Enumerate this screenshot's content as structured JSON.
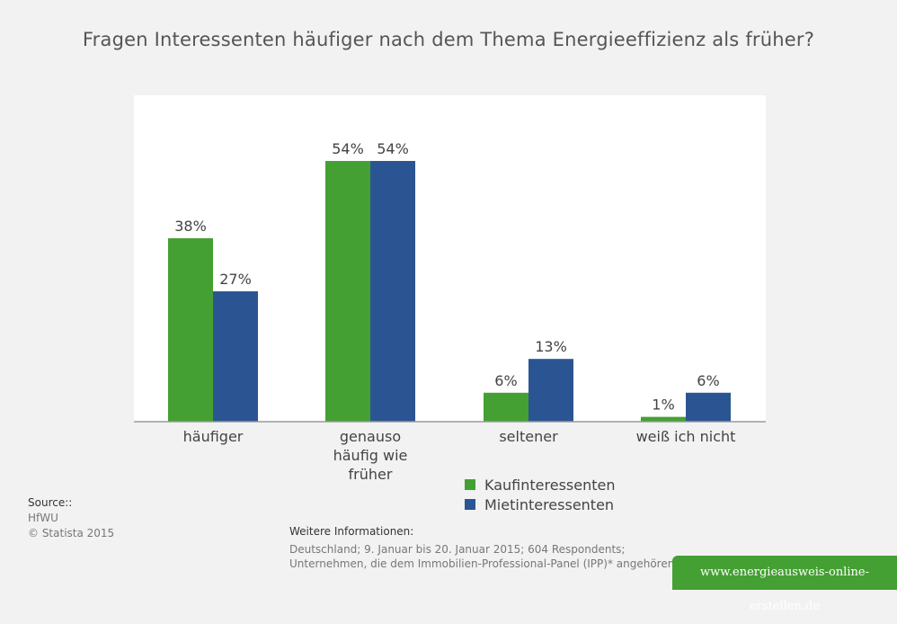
{
  "chart_data": {
    "type": "bar",
    "title": "Fragen Interessenten häufiger nach dem Thema Energieeffizienz als früher?",
    "categories": [
      "häufiger",
      "genauso häufig wie früher",
      "seltener",
      "weiß ich nicht"
    ],
    "category_lines": [
      [
        "häufiger"
      ],
      [
        "genauso",
        "häufig wie",
        "früher"
      ],
      [
        "seltener"
      ],
      [
        "weiß ich nicht"
      ]
    ],
    "series": [
      {
        "name": "Kaufinteressenten",
        "values": [
          38,
          54,
          6,
          1
        ],
        "color": "#44a033"
      },
      {
        "name": "Mietinteressenten",
        "values": [
          27,
          54,
          13,
          6
        ],
        "color": "#2b5592"
      }
    ],
    "value_suffix": "%",
    "ylim": [
      0,
      60
    ],
    "grid": false,
    "legend_position": "bottom"
  },
  "source": {
    "heading": "Source::",
    "lines": [
      "HfWU",
      "© Statista 2015"
    ]
  },
  "info": {
    "heading": "Weitere Informationen:",
    "lines": [
      "Deutschland; 9. Januar bis 20. Januar 2015; 604 Respondents;",
      "Unternehmen, die dem Immobilien-Professional-Panel (IPP)* angehören"
    ]
  },
  "banner": {
    "text": "www.energieausweis-online-erstellen.de"
  }
}
